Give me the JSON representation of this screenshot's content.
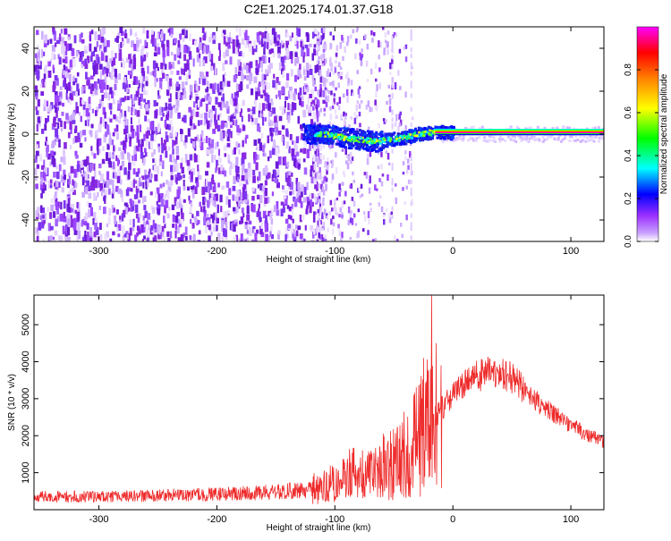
{
  "title": "C2E1.2025.174.01.37.G18",
  "chart_data": [
    {
      "type": "heatmap",
      "xlabel": "Height of straight line (km)",
      "ylabel": "Frequency (Hz)",
      "xlim": [
        -355,
        128
      ],
      "ylim": [
        -50,
        50
      ],
      "xticks": [
        -300,
        -200,
        -100,
        0,
        100
      ],
      "xtick_labels": [
        "-300",
        "-200",
        "-100",
        "0",
        "100"
      ],
      "yticks": [
        -40,
        -20,
        0,
        20,
        40
      ],
      "ytick_labels": [
        "-40",
        "-20",
        "0",
        "20",
        "40"
      ],
      "colorbar": {
        "label": "Normalized spectral amplitude",
        "range": [
          0,
          1
        ],
        "ticks": [
          0.0,
          0.2,
          0.4,
          0.6,
          0.8
        ],
        "tick_labels": [
          "0.0",
          "0.2",
          "0.4",
          "0.6",
          "0.8"
        ],
        "colormap": [
          "#ffffff",
          "#9b30ff",
          "#0000ff",
          "#00ffff",
          "#00ff00",
          "#ffff00",
          "#ff8000",
          "#ff0000",
          "#ff00ff"
        ]
      },
      "signal_track": [
        {
          "x": -125,
          "y": 0.0
        },
        {
          "x": -110,
          "y": 0.5
        },
        {
          "x": -95,
          "y": -1.0
        },
        {
          "x": -80,
          "y": -2.0
        },
        {
          "x": -65,
          "y": -3.0
        },
        {
          "x": -55,
          "y": -2.0
        },
        {
          "x": -45,
          "y": -1.5
        },
        {
          "x": -30,
          "y": 0.5
        },
        {
          "x": -15,
          "y": 1.5
        },
        {
          "x": 0,
          "y": 1.0
        },
        {
          "x": 50,
          "y": 1.0
        },
        {
          "x": 128,
          "y": 1.0
        }
      ],
      "grid": false
    },
    {
      "type": "line",
      "xlabel": "Height of straight line (km)",
      "ylabel": "SNR (10 * v/v)",
      "xlim": [
        -355,
        128
      ],
      "ylim": [
        0,
        5800
      ],
      "xticks": [
        -300,
        -200,
        -100,
        0,
        100
      ],
      "xtick_labels": [
        "-300",
        "-200",
        "-100",
        "0",
        "100"
      ],
      "yticks": [
        1000,
        2000,
        3000,
        4000,
        5000
      ],
      "ytick_labels": [
        "1000",
        "2000",
        "3000",
        "4000",
        "5000"
      ],
      "series": [
        {
          "color": "#ee2b2b",
          "envelope": [
            {
              "x": -355,
              "y": 350
            },
            {
              "x": -300,
              "y": 350
            },
            {
              "x": -250,
              "y": 380
            },
            {
              "x": -200,
              "y": 420
            },
            {
              "x": -150,
              "y": 480
            },
            {
              "x": -120,
              "y": 550
            },
            {
              "x": -100,
              "y": 750
            },
            {
              "x": -85,
              "y": 1000
            },
            {
              "x": -70,
              "y": 900
            },
            {
              "x": -55,
              "y": 1200
            },
            {
              "x": -40,
              "y": 1500
            },
            {
              "x": -30,
              "y": 1900
            },
            {
              "x": -20,
              "y": 2300
            },
            {
              "x": -10,
              "y": 2700
            },
            {
              "x": 0,
              "y": 3100
            },
            {
              "x": 10,
              "y": 3400
            },
            {
              "x": 20,
              "y": 3600
            },
            {
              "x": 30,
              "y": 3700
            },
            {
              "x": 40,
              "y": 3750
            },
            {
              "x": 50,
              "y": 3550
            },
            {
              "x": 60,
              "y": 3250
            },
            {
              "x": 70,
              "y": 2950
            },
            {
              "x": 80,
              "y": 2700
            },
            {
              "x": 90,
              "y": 2500
            },
            {
              "x": 100,
              "y": 2300
            },
            {
              "x": 110,
              "y": 2100
            },
            {
              "x": 120,
              "y": 1950
            },
            {
              "x": 128,
              "y": 1850
            }
          ],
          "spikes": [
            {
              "x": -18,
              "y": 5800
            },
            {
              "x": -25,
              "y": 4100
            },
            {
              "x": -14,
              "y": 4500
            },
            {
              "x": -10,
              "y": 3900
            }
          ]
        }
      ],
      "grid": false
    }
  ]
}
